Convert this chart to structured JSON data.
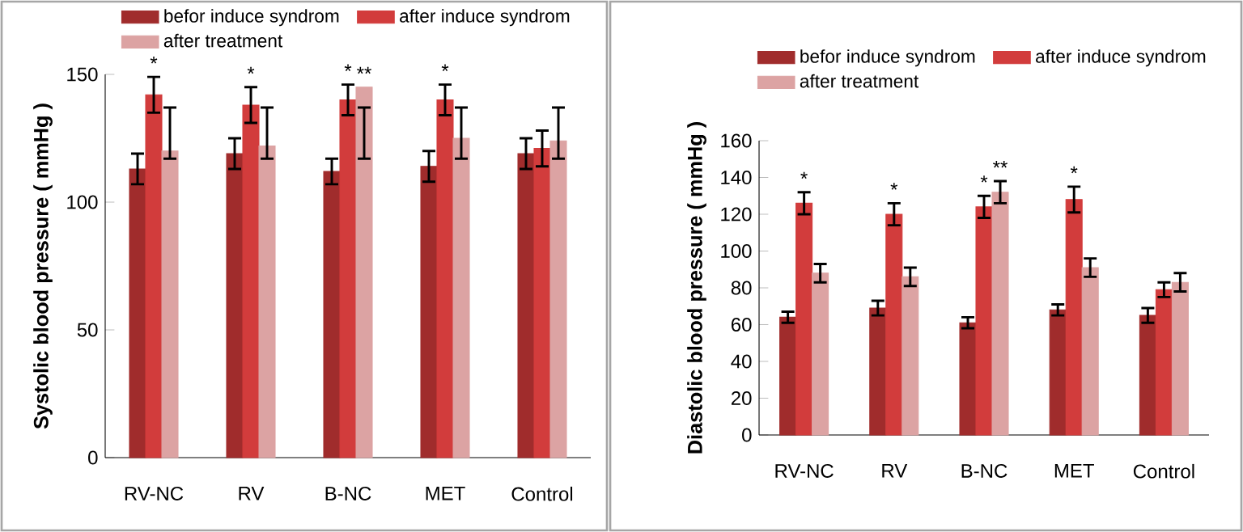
{
  "chart_data": [
    {
      "type": "bar",
      "ylabel": "Systolic blood pressure ( mmHg )",
      "categories": [
        "RV-NC",
        "RV",
        "B-NC",
        "MET",
        "Control"
      ],
      "series": [
        {
          "name": "befor induce syndrom",
          "color": "#a02c2c",
          "values": [
            113,
            119,
            112,
            114,
            119
          ],
          "errors": [
            6,
            6,
            5,
            6,
            6
          ]
        },
        {
          "name": "after induce syndrom",
          "color": "#d23c3c",
          "values": [
            142,
            138,
            140,
            140,
            121
          ],
          "errors": [
            7,
            7,
            6,
            6,
            7
          ]
        },
        {
          "name": "after treatment",
          "color": "#dca3a3",
          "values": [
            120,
            122,
            145,
            125,
            124
          ],
          "errors": [
            [
              117,
              137
            ],
            [
              117,
              137
            ],
            [
              117,
              137
            ],
            [
              117,
              137
            ],
            [
              117,
              137
            ]
          ]
        }
      ],
      "ylim": [
        0,
        150
      ],
      "yticks": [
        0,
        50,
        100,
        150
      ],
      "legend": "top",
      "annotations": [
        {
          "text": "*",
          "x": "RV-NC",
          "y": 142
        },
        {
          "text": "*",
          "x": "RV",
          "y": 138
        },
        {
          "text": "*",
          "x": "B-NC",
          "y": 140
        },
        {
          "text": "**",
          "x": "B-NC",
          "y": 145
        },
        {
          "text": "*",
          "x": "MET",
          "y": 140
        }
      ]
    },
    {
      "type": "bar",
      "ylabel": "Diastolic blood pressure ( mmHg )",
      "categories": [
        "RV-NC",
        "RV",
        "B-NC",
        "MET",
        "Control"
      ],
      "series": [
        {
          "name": "befor induce syndrom",
          "color": "#a02c2c",
          "values": [
            64,
            69,
            61,
            68,
            65
          ],
          "errors": [
            3,
            4,
            3,
            3,
            4
          ]
        },
        {
          "name": "after induce syndrom",
          "color": "#d23c3c",
          "values": [
            126,
            120,
            124,
            128,
            79
          ],
          "errors": [
            6,
            6,
            6,
            7,
            4
          ]
        },
        {
          "name": "after treatment",
          "color": "#dca3a3",
          "values": [
            88,
            86,
            132,
            91,
            83
          ],
          "errors": [
            5,
            5,
            6,
            5,
            5
          ]
        }
      ],
      "ylim": [
        0,
        160
      ],
      "yticks": [
        0,
        20,
        40,
        60,
        80,
        100,
        120,
        140,
        160
      ],
      "legend": "top",
      "annotations": [
        {
          "text": "*",
          "x": "RV-NC",
          "y": 126
        },
        {
          "text": "*",
          "x": "RV",
          "y": 120
        },
        {
          "text": "*",
          "x": "B-NC",
          "y": 124
        },
        {
          "text": "**",
          "x": "B-NC",
          "y": 132
        },
        {
          "text": "*",
          "x": "MET",
          "y": 128
        }
      ]
    }
  ]
}
